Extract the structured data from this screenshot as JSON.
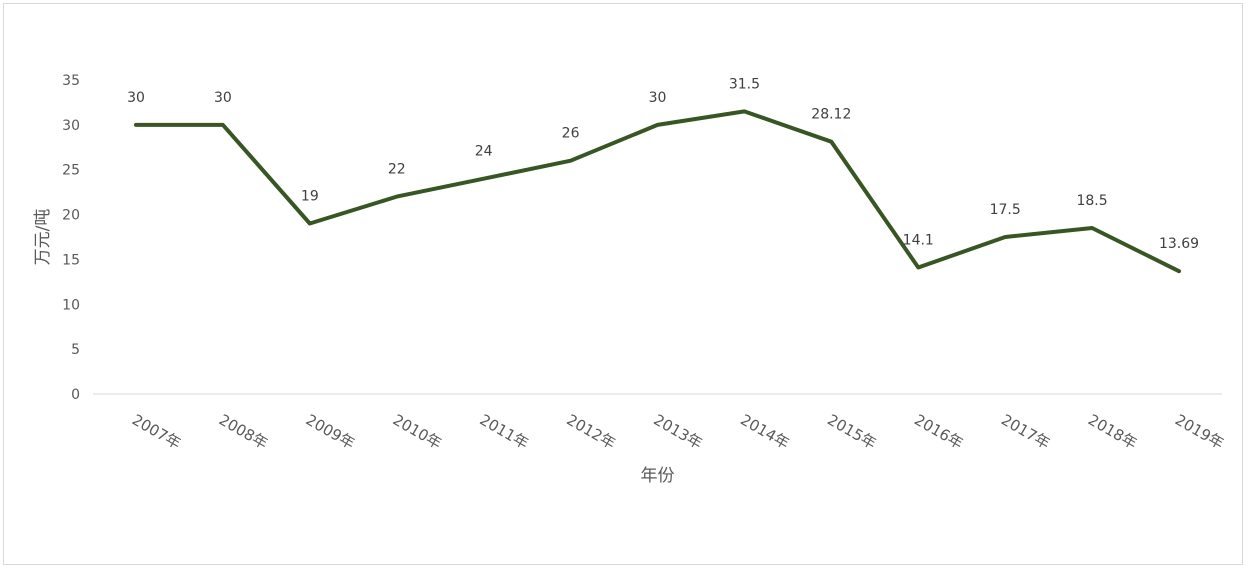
{
  "chart_data": {
    "type": "line",
    "title": "",
    "xlabel": "年份",
    "ylabel": "万元/吨",
    "categories": [
      "2007年",
      "2008年",
      "2009年",
      "2010年",
      "2011年",
      "2012年",
      "2013年",
      "2014年",
      "2015年",
      "2016年",
      "2017年",
      "2018年",
      "2019年"
    ],
    "series": [
      {
        "values": [
          30,
          30,
          19,
          22,
          24,
          26,
          30,
          31.5,
          28.12,
          14.1,
          17.5,
          18.5,
          13.69
        ],
        "labels": [
          "30",
          "30",
          "19",
          "22",
          "24",
          "26",
          "30",
          "31.5",
          "28.12",
          "14.1",
          "17.5",
          "18.5",
          "13.69"
        ],
        "color": "#375623"
      }
    ],
    "ylim": [
      0,
      35
    ],
    "yticks": [
      "0",
      "5",
      "10",
      "15",
      "20",
      "25",
      "30",
      "35"
    ],
    "grid": false,
    "legend": "none",
    "axis_color": "#d9d9d9"
  }
}
